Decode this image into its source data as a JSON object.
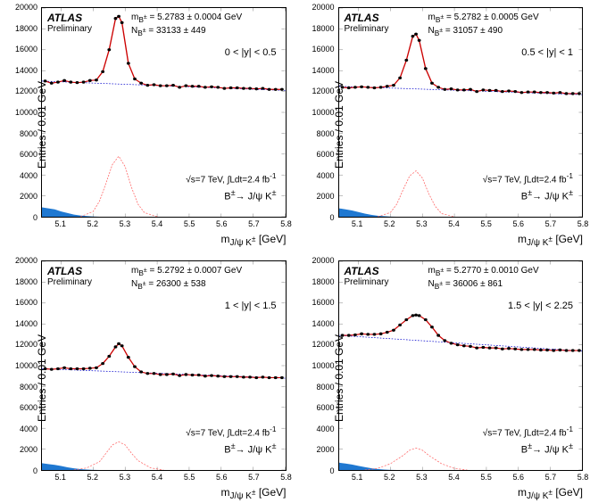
{
  "ylabel": "Entries / 0.01 GeV",
  "xlabel_html": "m<sub>J/ψ K<sup>±</sup></sub> [GeV]",
  "atlas": "ATLAS",
  "prelim": "Preliminary",
  "lumi_html": "√s=7 TeV, ∫Ldt=2.4 fb<sup>-1</sup>",
  "decay_html": "B<sup>±</sup>→ J/ψ K<sup>±</sup>",
  "xlim": [
    5.04,
    5.8
  ],
  "xtick_positions": [
    5.1,
    5.2,
    5.3,
    5.4,
    5.5,
    5.6,
    5.7,
    5.8
  ],
  "xtick_labels": [
    "5.1",
    "5.2",
    "5.3",
    "5.4",
    "5.5",
    "5.6",
    "5.7",
    "5.8"
  ],
  "ytick_positions": [
    0,
    2000,
    4000,
    6000,
    8000,
    10000,
    12000,
    14000,
    16000,
    18000,
    20000
  ],
  "ytick_labels": [
    "0",
    "2000",
    "4000",
    "6000",
    "8000",
    "10000",
    "12000",
    "14000",
    "16000",
    "18000",
    "20000"
  ],
  "ylim": [
    0,
    20000
  ],
  "colors": {
    "data": "#000000",
    "fit": "#cc0000",
    "bkg_line": "#0000cc",
    "signal_fill": "none",
    "signal_line": "#ff6666",
    "reflection_fill": "#1f78d1",
    "background": "#ffffff"
  },
  "panels": [
    {
      "mass_html": "m<sub>B<sup>±</sup></sub> = 5.2783 ± 0.0004 GeV",
      "yield_html": "N<sub>B<sup>±</sup></sub> = 33133 ± 449",
      "rapidity": "0 < |y| < 0.5",
      "data": [
        [
          5.05,
          13000
        ],
        [
          5.07,
          12800
        ],
        [
          5.09,
          12900
        ],
        [
          5.11,
          13050
        ],
        [
          5.13,
          12900
        ],
        [
          5.15,
          12850
        ],
        [
          5.17,
          12900
        ],
        [
          5.19,
          13050
        ],
        [
          5.21,
          13100
        ],
        [
          5.23,
          13900
        ],
        [
          5.25,
          16000
        ],
        [
          5.27,
          19000
        ],
        [
          5.28,
          19200
        ],
        [
          5.29,
          18600
        ],
        [
          5.31,
          14700
        ],
        [
          5.33,
          13200
        ],
        [
          5.35,
          12800
        ],
        [
          5.37,
          12600
        ],
        [
          5.39,
          12650
        ],
        [
          5.41,
          12550
        ],
        [
          5.43,
          12550
        ],
        [
          5.45,
          12600
        ],
        [
          5.47,
          12400
        ],
        [
          5.49,
          12550
        ],
        [
          5.51,
          12500
        ],
        [
          5.53,
          12500
        ],
        [
          5.55,
          12400
        ],
        [
          5.57,
          12450
        ],
        [
          5.59,
          12400
        ],
        [
          5.61,
          12300
        ],
        [
          5.63,
          12350
        ],
        [
          5.65,
          12350
        ],
        [
          5.67,
          12300
        ],
        [
          5.69,
          12300
        ],
        [
          5.71,
          12250
        ],
        [
          5.73,
          12300
        ],
        [
          5.75,
          12200
        ],
        [
          5.77,
          12200
        ],
        [
          5.79,
          12200
        ]
      ],
      "bkg_line": [
        [
          5.04,
          13000
        ],
        [
          5.8,
          12100
        ]
      ],
      "signal": [
        [
          5.16,
          0
        ],
        [
          5.2,
          500
        ],
        [
          5.22,
          1500
        ],
        [
          5.24,
          3200
        ],
        [
          5.26,
          5000
        ],
        [
          5.28,
          5800
        ],
        [
          5.3,
          4800
        ],
        [
          5.32,
          2800
        ],
        [
          5.34,
          1200
        ],
        [
          5.36,
          400
        ],
        [
          5.4,
          0
        ]
      ],
      "reflection": [
        [
          5.04,
          900
        ],
        [
          5.06,
          800
        ],
        [
          5.08,
          700
        ],
        [
          5.1,
          500
        ],
        [
          5.12,
          350
        ],
        [
          5.14,
          200
        ],
        [
          5.16,
          120
        ],
        [
          5.18,
          60
        ],
        [
          5.2,
          20
        ],
        [
          5.22,
          0
        ]
      ]
    },
    {
      "mass_html": "m<sub>B<sup>±</sup></sub> = 5.2782 ± 0.0005 GeV",
      "yield_html": "N<sub>B<sup>±</sup></sub> = 31057 ± 490",
      "rapidity": "0.5 < |y| < 1",
      "data": [
        [
          5.05,
          12400
        ],
        [
          5.07,
          12350
        ],
        [
          5.09,
          12400
        ],
        [
          5.11,
          12450
        ],
        [
          5.13,
          12400
        ],
        [
          5.15,
          12350
        ],
        [
          5.17,
          12400
        ],
        [
          5.19,
          12500
        ],
        [
          5.21,
          12600
        ],
        [
          5.23,
          13300
        ],
        [
          5.25,
          15000
        ],
        [
          5.27,
          17300
        ],
        [
          5.28,
          17500
        ],
        [
          5.29,
          16900
        ],
        [
          5.31,
          14200
        ],
        [
          5.33,
          12800
        ],
        [
          5.35,
          12400
        ],
        [
          5.37,
          12200
        ],
        [
          5.39,
          12250
        ],
        [
          5.41,
          12150
        ],
        [
          5.43,
          12150
        ],
        [
          5.45,
          12200
        ],
        [
          5.47,
          12000
        ],
        [
          5.49,
          12150
        ],
        [
          5.51,
          12100
        ],
        [
          5.53,
          12100
        ],
        [
          5.55,
          12000
        ],
        [
          5.57,
          12050
        ],
        [
          5.59,
          12000
        ],
        [
          5.61,
          11900
        ],
        [
          5.63,
          11950
        ],
        [
          5.65,
          11950
        ],
        [
          5.67,
          11900
        ],
        [
          5.69,
          11900
        ],
        [
          5.71,
          11850
        ],
        [
          5.73,
          11900
        ],
        [
          5.75,
          11800
        ],
        [
          5.77,
          11800
        ],
        [
          5.79,
          11800
        ]
      ],
      "bkg_line": [
        [
          5.04,
          12500
        ],
        [
          5.8,
          11700
        ]
      ],
      "signal": [
        [
          5.16,
          0
        ],
        [
          5.2,
          400
        ],
        [
          5.22,
          1200
        ],
        [
          5.24,
          2600
        ],
        [
          5.26,
          3900
        ],
        [
          5.28,
          4400
        ],
        [
          5.3,
          3700
        ],
        [
          5.32,
          2200
        ],
        [
          5.34,
          1000
        ],
        [
          5.36,
          300
        ],
        [
          5.4,
          0
        ]
      ],
      "reflection": [
        [
          5.04,
          800
        ],
        [
          5.06,
          700
        ],
        [
          5.08,
          600
        ],
        [
          5.1,
          450
        ],
        [
          5.12,
          300
        ],
        [
          5.14,
          180
        ],
        [
          5.16,
          100
        ],
        [
          5.18,
          50
        ],
        [
          5.2,
          15
        ],
        [
          5.22,
          0
        ]
      ]
    },
    {
      "mass_html": "m<sub>B<sup>±</sup></sub> = 5.2792 ± 0.0007 GeV",
      "yield_html": "N<sub>B<sup>±</sup></sub> = 26300 ± 538",
      "rapidity": "1 < |y| < 1.5",
      "data": [
        [
          5.05,
          9700
        ],
        [
          5.07,
          9650
        ],
        [
          5.09,
          9700
        ],
        [
          5.11,
          9800
        ],
        [
          5.13,
          9700
        ],
        [
          5.15,
          9700
        ],
        [
          5.17,
          9700
        ],
        [
          5.19,
          9750
        ],
        [
          5.21,
          9800
        ],
        [
          5.23,
          10200
        ],
        [
          5.25,
          10900
        ],
        [
          5.27,
          11800
        ],
        [
          5.28,
          12100
        ],
        [
          5.29,
          11900
        ],
        [
          5.31,
          10800
        ],
        [
          5.33,
          9900
        ],
        [
          5.35,
          9400
        ],
        [
          5.37,
          9250
        ],
        [
          5.39,
          9250
        ],
        [
          5.41,
          9150
        ],
        [
          5.43,
          9150
        ],
        [
          5.45,
          9200
        ],
        [
          5.47,
          9050
        ],
        [
          5.49,
          9150
        ],
        [
          5.51,
          9100
        ],
        [
          5.53,
          9100
        ],
        [
          5.55,
          9000
        ],
        [
          5.57,
          9050
        ],
        [
          5.59,
          9000
        ],
        [
          5.61,
          8950
        ],
        [
          5.63,
          8950
        ],
        [
          5.65,
          8950
        ],
        [
          5.67,
          8900
        ],
        [
          5.69,
          8900
        ],
        [
          5.71,
          8850
        ],
        [
          5.73,
          8900
        ],
        [
          5.75,
          8850
        ],
        [
          5.77,
          8850
        ],
        [
          5.79,
          8850
        ]
      ],
      "bkg_line": [
        [
          5.04,
          9700
        ],
        [
          5.8,
          8800
        ]
      ],
      "signal": [
        [
          5.14,
          0
        ],
        [
          5.18,
          200
        ],
        [
          5.22,
          800
        ],
        [
          5.24,
          1600
        ],
        [
          5.26,
          2400
        ],
        [
          5.28,
          2700
        ],
        [
          5.3,
          2400
        ],
        [
          5.32,
          1600
        ],
        [
          5.34,
          900
        ],
        [
          5.38,
          200
        ],
        [
          5.42,
          0
        ]
      ],
      "reflection": [
        [
          5.04,
          650
        ],
        [
          5.06,
          570
        ],
        [
          5.08,
          490
        ],
        [
          5.1,
          380
        ],
        [
          5.12,
          260
        ],
        [
          5.14,
          160
        ],
        [
          5.16,
          90
        ],
        [
          5.18,
          40
        ],
        [
          5.2,
          12
        ],
        [
          5.22,
          0
        ]
      ]
    },
    {
      "mass_html": "m<sub>B<sup>±</sup></sub> = 5.2770 ± 0.0010 GeV",
      "yield_html": "N<sub>B<sup>±</sup></sub> = 36006 ± 861",
      "rapidity": "1.5 < |y| < 2.25",
      "data": [
        [
          5.05,
          12900
        ],
        [
          5.07,
          12900
        ],
        [
          5.09,
          12950
        ],
        [
          5.11,
          13050
        ],
        [
          5.13,
          13000
        ],
        [
          5.15,
          13000
        ],
        [
          5.17,
          13050
        ],
        [
          5.19,
          13200
        ],
        [
          5.21,
          13400
        ],
        [
          5.23,
          13900
        ],
        [
          5.25,
          14400
        ],
        [
          5.27,
          14800
        ],
        [
          5.28,
          14850
        ],
        [
          5.29,
          14800
        ],
        [
          5.31,
          14400
        ],
        [
          5.33,
          13700
        ],
        [
          5.35,
          12900
        ],
        [
          5.37,
          12400
        ],
        [
          5.39,
          12150
        ],
        [
          5.41,
          12000
        ],
        [
          5.43,
          11900
        ],
        [
          5.45,
          11850
        ],
        [
          5.47,
          11700
        ],
        [
          5.49,
          11750
        ],
        [
          5.51,
          11700
        ],
        [
          5.53,
          11700
        ],
        [
          5.55,
          11600
        ],
        [
          5.57,
          11650
        ],
        [
          5.59,
          11600
        ],
        [
          5.61,
          11550
        ],
        [
          5.63,
          11550
        ],
        [
          5.65,
          11550
        ],
        [
          5.67,
          11500
        ],
        [
          5.69,
          11500
        ],
        [
          5.71,
          11450
        ],
        [
          5.73,
          11500
        ],
        [
          5.75,
          11450
        ],
        [
          5.77,
          11450
        ],
        [
          5.79,
          11450
        ]
      ],
      "bkg_line": [
        [
          5.04,
          12900
        ],
        [
          5.8,
          11400
        ]
      ],
      "signal": [
        [
          5.12,
          0
        ],
        [
          5.16,
          150
        ],
        [
          5.2,
          600
        ],
        [
          5.24,
          1400
        ],
        [
          5.26,
          1900
        ],
        [
          5.28,
          2100
        ],
        [
          5.3,
          1900
        ],
        [
          5.32,
          1400
        ],
        [
          5.36,
          600
        ],
        [
          5.4,
          150
        ],
        [
          5.44,
          0
        ]
      ],
      "reflection": [
        [
          5.04,
          700
        ],
        [
          5.06,
          620
        ],
        [
          5.08,
          520
        ],
        [
          5.1,
          400
        ],
        [
          5.12,
          280
        ],
        [
          5.14,
          170
        ],
        [
          5.16,
          95
        ],
        [
          5.18,
          45
        ],
        [
          5.2,
          14
        ],
        [
          5.22,
          0
        ]
      ]
    }
  ]
}
